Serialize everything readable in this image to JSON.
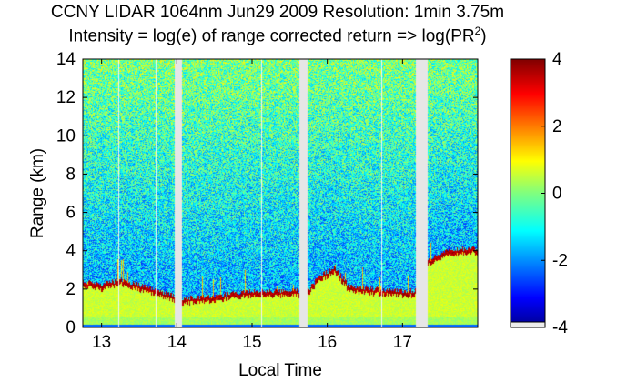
{
  "chart_data": {
    "type": "heatmap",
    "title": "CCNY LIDAR 1064nm Jun29 2009 Resolution: 1min 3.75m",
    "subtitle_prefix": "Intensity = log(e) of range corrected return => log(PR",
    "subtitle_sup": "2",
    "subtitle_suffix": ")",
    "xlabel": "Local Time",
    "ylabel": "Range (km)",
    "xlim": [
      12.75,
      18.0
    ],
    "ylim": [
      0,
      14
    ],
    "x_ticks": [
      13,
      14,
      15,
      16,
      17
    ],
    "x_tick_labels": [
      "13",
      "14",
      "15",
      "16",
      "17"
    ],
    "y_ticks": [
      0,
      2,
      4,
      6,
      8,
      10,
      12,
      14
    ],
    "y_tick_labels": [
      "0",
      "2",
      "4",
      "6",
      "8",
      "10",
      "12",
      "14"
    ],
    "colorbar": {
      "range": [
        -4,
        4
      ],
      "ticks": [
        4,
        2,
        0,
        -2,
        -4
      ],
      "tick_labels": [
        "4",
        "2",
        "0",
        "-2",
        "-4"
      ],
      "colormap": "jet"
    },
    "data_gaps": [
      [
        13.97,
        14.07
      ],
      [
        15.63,
        15.74
      ],
      [
        17.18,
        17.34
      ]
    ],
    "thin_gaps": [
      13.23,
      13.72,
      15.13,
      16.72
    ],
    "pbl_height_km": [
      [
        12.75,
        2.3
      ],
      [
        13.0,
        2.1
      ],
      [
        13.25,
        2.4
      ],
      [
        13.5,
        2.1
      ],
      [
        13.75,
        1.8
      ],
      [
        13.97,
        1.5
      ],
      [
        14.07,
        1.4
      ],
      [
        14.4,
        1.5
      ],
      [
        14.8,
        1.7
      ],
      [
        15.1,
        1.8
      ],
      [
        15.4,
        1.8
      ],
      [
        15.63,
        1.8
      ],
      [
        15.74,
        1.8
      ],
      [
        15.9,
        2.6
      ],
      [
        16.1,
        3.0
      ],
      [
        16.3,
        2.0
      ],
      [
        16.6,
        1.9
      ],
      [
        16.9,
        1.8
      ],
      [
        17.18,
        1.8
      ],
      [
        17.34,
        3.4
      ],
      [
        17.6,
        3.9
      ],
      [
        17.85,
        4.0
      ],
      [
        18.0,
        4.0
      ]
    ]
  }
}
